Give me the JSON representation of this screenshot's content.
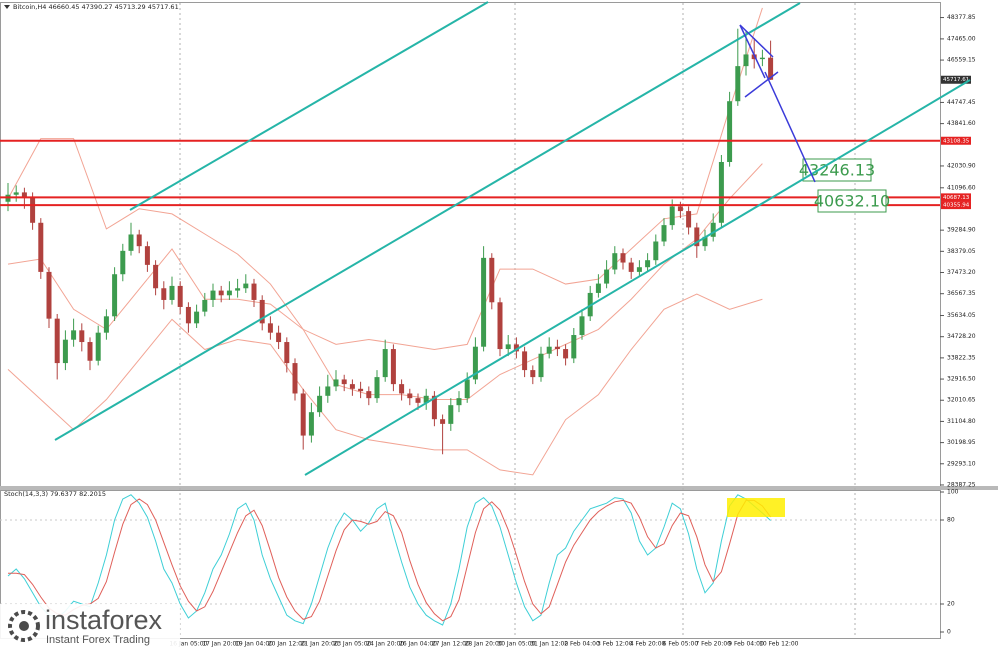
{
  "chart_data": [
    {
      "type": "candlestick",
      "title": "Bitcoin,H4  46660.45 47390.27 45713.29 45717.61",
      "up_color": "#3c9b4e",
      "down_color": "#b0413e",
      "categories": [
        null,
        null,
        null,
        null,
        null,
        null,
        null,
        null,
        null,
        null,
        null,
        null,
        null,
        null,
        null,
        null,
        null,
        null,
        null,
        null,
        null,
        null,
        "16 Jan 05:00",
        null,
        null,
        null,
        "17 Jan 20:00",
        null,
        null,
        null,
        "19 Jan 04:00",
        null,
        null,
        null,
        "20 Jan 12:00",
        null,
        null,
        null,
        "21 Jan 20:00",
        null,
        null,
        null,
        "23 Jan 05:00",
        null,
        null,
        null,
        "24 Jan 20:00",
        null,
        null,
        null,
        "26 Jan 04:00",
        null,
        null,
        null,
        "27 Jan 12:00",
        null,
        null,
        null,
        "28 Jan 20:00",
        null,
        null,
        null,
        "30 Jan 05:00",
        null,
        null,
        null,
        "31 Jan 12:00",
        null,
        null,
        null,
        "2 Feb 04:00",
        null,
        null,
        null,
        "3 Feb 12:00",
        null,
        null,
        null,
        "4 Feb 20:00",
        null,
        null,
        null,
        "6 Feb 05:00",
        null,
        null,
        null,
        "7 Feb 20:00",
        null,
        null,
        null,
        "9 Feb 04:00",
        null,
        null,
        null,
        "10 Feb 12:00"
      ],
      "open": [
        40500,
        40800,
        40900,
        40700,
        39600,
        37500,
        35500,
        33600,
        34600,
        35000,
        34500,
        33700,
        34900,
        35600,
        37400,
        38400,
        39100,
        38600,
        37800,
        36800,
        36300,
        36900,
        36000,
        35300,
        35800,
        36300,
        36700,
        36500,
        36700,
        36800,
        37000,
        36300,
        35300,
        34900,
        34500,
        33600,
        32300,
        30500,
        31500,
        32200,
        32600,
        32900,
        32700,
        32500,
        32400,
        32100,
        33000,
        34200,
        32700,
        32300,
        32100,
        31900,
        32200,
        31200,
        31000,
        31800,
        32100,
        32900,
        34300,
        38100,
        36200,
        34200,
        34400,
        34100,
        33300,
        33000,
        34000,
        34300,
        34200,
        33800,
        34800,
        35600,
        36600,
        37000,
        37600,
        38300,
        37900,
        37500,
        37700,
        38000,
        38800,
        39500,
        40300,
        40100,
        39400,
        38600,
        39000,
        39600,
        42200,
        44800,
        46300,
        46800,
        46600,
        46660.45,
        null
      ],
      "high": [
        41300,
        41200,
        41100,
        40900,
        39800,
        37700,
        35700,
        35000,
        35500,
        35300,
        34700,
        35200,
        35900,
        37700,
        38700,
        39600,
        39300,
        38800,
        38000,
        37100,
        37300,
        37100,
        36200,
        36100,
        36600,
        37000,
        36900,
        37100,
        37200,
        37400,
        37200,
        36500,
        35600,
        35200,
        34700,
        33800,
        32500,
        31900,
        32600,
        33100,
        33300,
        33100,
        32900,
        32800,
        32600,
        33300,
        34600,
        34400,
        32900,
        32500,
        32300,
        32500,
        32400,
        31400,
        32100,
        32400,
        33200,
        34700,
        38600,
        38300,
        36400,
        34800,
        34700,
        34300,
        33500,
        34300,
        34700,
        34600,
        34400,
        35100,
        35900,
        36900,
        37400,
        38000,
        38600,
        38500,
        38100,
        38000,
        38300,
        39100,
        39800,
        40600,
        40500,
        40300,
        39600,
        39300,
        40000,
        42500,
        45200,
        47900,
        47800,
        47500,
        47000,
        47390.27,
        null
      ],
      "low": [
        40100,
        40500,
        40200,
        39300,
        37200,
        35100,
        32900,
        33300,
        34300,
        34100,
        33300,
        33500,
        34600,
        35400,
        37100,
        38200,
        38300,
        37500,
        36500,
        35900,
        36100,
        35700,
        34900,
        35100,
        35600,
        36000,
        36200,
        36300,
        36400,
        36600,
        36000,
        35000,
        34600,
        34200,
        33200,
        32000,
        29900,
        30200,
        31300,
        31900,
        32400,
        32400,
        32200,
        32100,
        31800,
        31900,
        32800,
        32400,
        32000,
        31800,
        31600,
        31600,
        30900,
        29700,
        30700,
        31500,
        31900,
        32700,
        34100,
        35900,
        33900,
        33900,
        33800,
        33000,
        32700,
        32800,
        33800,
        33900,
        33500,
        33600,
        34600,
        35400,
        36400,
        36800,
        37400,
        37600,
        37200,
        37300,
        37500,
        37800,
        38600,
        39300,
        39800,
        39100,
        38100,
        38400,
        38800,
        39400,
        42000,
        44600,
        45900,
        46200,
        46300,
        45713.29,
        null
      ],
      "close": [
        40800,
        40900,
        40700,
        39600,
        37500,
        35500,
        33600,
        34600,
        35000,
        34500,
        33700,
        34900,
        35600,
        37400,
        38400,
        39100,
        38600,
        37800,
        36800,
        36300,
        36900,
        36000,
        35300,
        35800,
        36300,
        36700,
        36500,
        36700,
        36800,
        37000,
        36300,
        35300,
        34900,
        34500,
        33600,
        32300,
        30500,
        31500,
        32200,
        32600,
        32900,
        32700,
        32500,
        32400,
        32100,
        33000,
        34200,
        32700,
        32300,
        32100,
        31900,
        32200,
        31200,
        31000,
        31800,
        32100,
        32900,
        34300,
        38100,
        36200,
        34200,
        34400,
        34100,
        33300,
        33000,
        34000,
        34300,
        34200,
        33800,
        34800,
        35600,
        36600,
        37000,
        37600,
        38300,
        37900,
        37500,
        37700,
        38000,
        38800,
        39500,
        40300,
        40100,
        39400,
        38600,
        39000,
        39600,
        42200,
        44800,
        46300,
        46800,
        46600,
        46660.45,
        45717.61,
        null
      ],
      "overlays": [
        {
          "color": "#f2a494",
          "x": [
            0,
            4,
            8,
            12,
            16,
            20,
            24,
            28,
            32,
            36,
            40,
            44,
            48,
            52,
            56,
            60,
            64,
            68,
            72,
            76,
            80,
            84,
            88,
            92
          ],
          "values": [
            40630,
            43200,
            43200,
            39340,
            40200,
            39980,
            39120,
            38260,
            36980,
            35040,
            34400,
            34610,
            34400,
            34180,
            34400,
            37620,
            37620,
            36980,
            37190,
            38480,
            39770,
            39980,
            44490,
            48790
          ]
        },
        {
          "color": "#f2a494",
          "x": [
            0,
            4,
            8,
            12,
            16,
            20,
            24,
            28,
            32,
            36,
            40,
            44,
            48,
            52,
            56,
            60,
            64,
            68,
            72,
            76,
            80,
            84,
            88,
            92
          ],
          "values": [
            37830,
            38050,
            35900,
            35040,
            36760,
            38480,
            36330,
            36330,
            36120,
            35040,
            32680,
            32250,
            32250,
            32040,
            32040,
            33110,
            33750,
            34400,
            35040,
            36330,
            37830,
            38910,
            40630,
            42130
          ]
        },
        {
          "color": "#f2a494",
          "x": [
            0,
            4,
            8,
            12,
            16,
            20,
            24,
            28,
            32,
            36,
            40,
            44,
            48,
            52,
            56,
            60,
            64,
            68,
            72,
            76,
            80,
            84,
            88,
            92
          ],
          "values": [
            33330,
            32040,
            30750,
            32040,
            33750,
            35470,
            34180,
            34610,
            34400,
            32470,
            30750,
            30320,
            30100,
            29890,
            29890,
            29030,
            28820,
            31180,
            32250,
            34180,
            35900,
            36550,
            35900,
            36330
          ]
        }
      ],
      "levels": [
        {
          "value": 43108.35,
          "color": "#e52222"
        },
        {
          "value": 40687.13,
          "color": "#e52222"
        },
        {
          "value": 40355.94,
          "color": "#e52222"
        }
      ],
      "current_price": 45717.61,
      "targets": [
        43246.13,
        {
          "value": 40632.1,
          "label": "40632.10"
        }
      ],
      "ylim": [
        28300,
        49000
      ],
      "yticks": [
        48377.85,
        {
          "value": 47465,
          "label": "47465.00"
        },
        46559.15,
        44747.45,
        {
          "value": 43841.6,
          "label": "43841.60"
        },
        {
          "value": 42030.9,
          "label": "42030.90"
        },
        {
          "value": 41096.6,
          "label": "41096.60"
        },
        {
          "value": 39284.9,
          "label": "39284.90"
        },
        38379.05,
        {
          "value": 37473.2,
          "label": "37473.20"
        },
        36567.35,
        35634.05,
        {
          "value": 34728.2,
          "label": "34728.20"
        },
        33822.35,
        {
          "value": 32916.5,
          "label": "32916.50"
        },
        32010.65,
        {
          "value": 31104.8,
          "label": "31104.80"
        },
        30198.95,
        {
          "value": 29293.1,
          "label": "29293.10"
        },
        28387.25
      ]
    },
    {
      "type": "line",
      "title": "Stoch(14,3,3) 79.6377 82.2015",
      "series": [
        {
          "color": "#3ecfd6",
          "values": [
            40,
            45,
            38,
            28,
            18,
            12,
            10,
            15,
            22,
            20,
            18,
            35,
            55,
            80,
            95,
            98,
            92,
            82,
            65,
            45,
            35,
            20,
            10,
            15,
            28,
            45,
            55,
            70,
            88,
            92,
            80,
            55,
            38,
            25,
            12,
            8,
            6,
            20,
            40,
            60,
            75,
            85,
            80,
            72,
            78,
            88,
            92,
            70,
            50,
            32,
            20,
            12,
            8,
            5,
            20,
            45,
            75,
            92,
            96,
            90,
            75,
            55,
            35,
            18,
            8,
            12,
            35,
            55,
            60,
            72,
            80,
            88,
            90,
            92,
            96,
            95,
            85,
            65,
            55,
            60,
            75,
            92,
            88,
            70,
            45,
            28,
            35,
            65,
            90,
            98,
            95,
            90,
            85,
            79.6377,
            null
          ]
        },
        {
          "color": "#e0605a",
          "values": [
            42,
            42,
            41,
            34,
            25,
            17,
            13,
            12,
            16,
            19,
            20,
            24,
            36,
            57,
            77,
            91,
            95,
            91,
            80,
            64,
            48,
            33,
            22,
            15,
            18,
            29,
            43,
            57,
            71,
            83,
            87,
            76,
            58,
            39,
            25,
            15,
            9,
            11,
            22,
            40,
            58,
            73,
            80,
            79,
            77,
            79,
            86,
            83,
            71,
            51,
            34,
            21,
            13,
            8,
            11,
            23,
            47,
            71,
            88,
            93,
            87,
            73,
            55,
            36,
            20,
            13,
            18,
            34,
            50,
            62,
            71,
            80,
            86,
            90,
            93,
            94,
            92,
            82,
            68,
            60,
            63,
            76,
            85,
            83,
            68,
            48,
            36,
            43,
            63,
            84,
            94,
            94,
            90,
            82.2015,
            null
          ]
        }
      ],
      "ylim": [
        0,
        100
      ],
      "yticks": [
        0,
        20,
        80,
        100
      ]
    }
  ],
  "watermark": {
    "brand": "instaforex",
    "tagline": "Instant Forex Trading"
  }
}
